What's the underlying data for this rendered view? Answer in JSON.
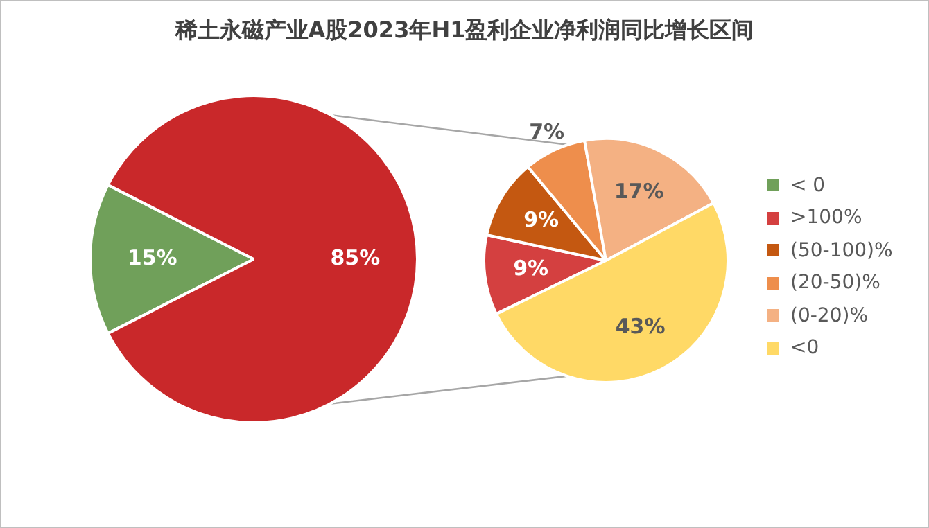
{
  "chart_data": [
    {
      "type": "pie",
      "title": "稀土永磁产业A股2023年H1盈利企业净利润同比增长区间",
      "categories": [
        "< 0",
        null
      ],
      "values": [
        15,
        85
      ],
      "colors": [
        "#70a05a",
        "#c9282a"
      ],
      "value_labels": [
        "15%",
        "85%"
      ],
      "legend": "right"
    },
    {
      "type": "pie",
      "categories": [
        ">100%",
        "(50-100)%",
        "(20-50)%",
        "(0-20)%",
        "<0"
      ],
      "values": [
        9,
        9,
        7,
        17,
        43
      ],
      "colors": [
        "#d44040",
        "#c45811",
        "#ee8e4c",
        "#f4b183",
        "#ffd966"
      ],
      "value_labels": [
        "9%",
        "9%",
        "7%",
        "17%",
        "43%"
      ],
      "legend": "right"
    }
  ]
}
